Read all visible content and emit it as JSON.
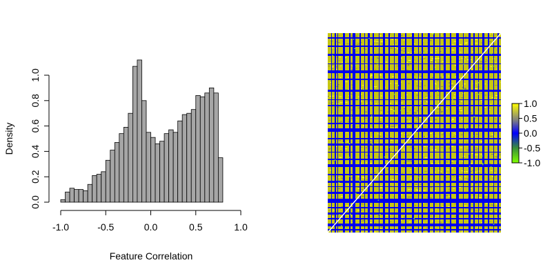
{
  "chart_data": [
    {
      "type": "bar",
      "subtype": "histogram",
      "xlabel": "Feature Correlation",
      "ylabel": "Density",
      "xlim": [
        -1.0,
        1.0
      ],
      "ylim": [
        0.0,
        1.0
      ],
      "x_ticks": [
        "-1.0",
        "-0.5",
        "0.0",
        "0.5",
        "1.0"
      ],
      "y_ticks": [
        "0.0",
        "0.2",
        "0.4",
        "0.6",
        "0.8",
        "1.0"
      ],
      "bin_width": 0.05,
      "bin_edges_start": -1.0,
      "values": [
        0.02,
        0.08,
        0.11,
        0.1,
        0.1,
        0.09,
        0.14,
        0.21,
        0.22,
        0.24,
        0.33,
        0.41,
        0.47,
        0.54,
        0.59,
        0.7,
        1.07,
        1.12,
        0.8,
        0.55,
        0.51,
        0.46,
        0.48,
        0.54,
        0.57,
        0.55,
        0.64,
        0.69,
        0.7,
        0.73,
        0.84,
        0.83,
        0.86,
        0.9,
        0.86,
        0.35
      ],
      "bar_color": "#a6a6a6",
      "bar_edge_color": "#000000",
      "grid": false
    },
    {
      "type": "heatmap",
      "description": "correlation matrix heatmap",
      "colorbar_ticks": [
        "1.0",
        "0.5",
        "0.0",
        "-0.5",
        "-1.0"
      ],
      "colorbar_range": [
        -1.0,
        1.0
      ],
      "colorscale": [
        "#7fff00",
        "#0000ff",
        "#808080",
        "#ffff00"
      ],
      "diagonal_color": "#ffffff"
    }
  ]
}
